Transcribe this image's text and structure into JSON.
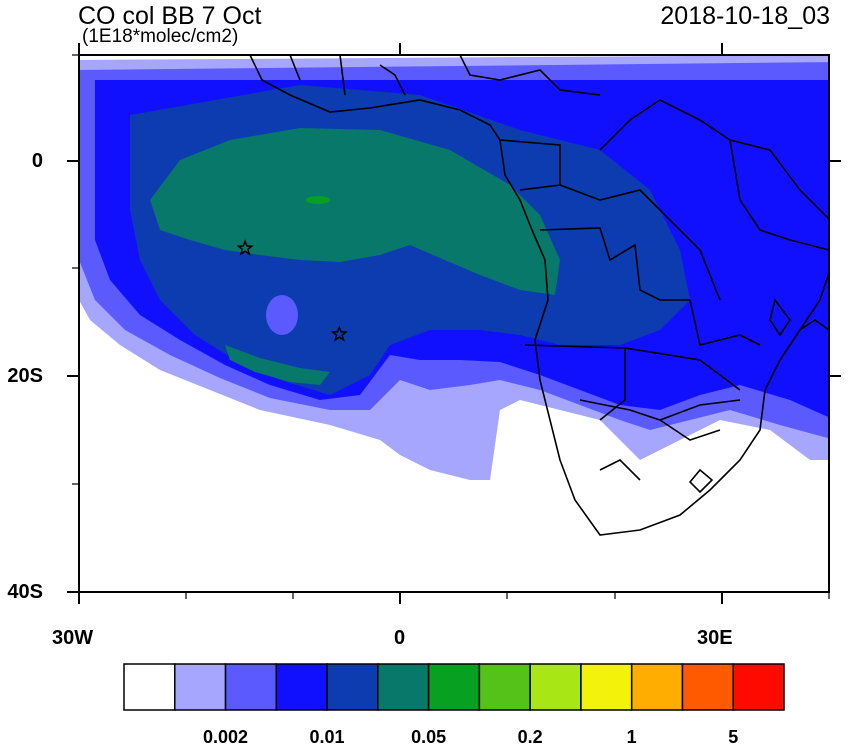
{
  "title": "CO col BB 7 Oct",
  "units": "(1E18*molec/cm2)",
  "datetime": "2018-10-18_03",
  "axes": {
    "y_labels": [
      "0",
      "20S",
      "40S"
    ],
    "x_labels": [
      "30W",
      "0",
      "30E"
    ]
  },
  "markers": [
    {
      "name": "star",
      "lon": -14.5,
      "lat": -8
    },
    {
      "name": "star",
      "lon": -5.7,
      "lat": -16
    }
  ],
  "colorbar": {
    "colors": [
      "#ffffff",
      "#a6a6ff",
      "#5a5aff",
      "#1010ff",
      "#0c3cb0",
      "#07786a",
      "#07a020",
      "#55c21a",
      "#a8e615",
      "#f2f20a",
      "#ffae00",
      "#ff5a00",
      "#ff0a00"
    ],
    "labels": [
      "0.002",
      "0.01",
      "0.05",
      "0.2",
      "1",
      "5"
    ]
  }
}
